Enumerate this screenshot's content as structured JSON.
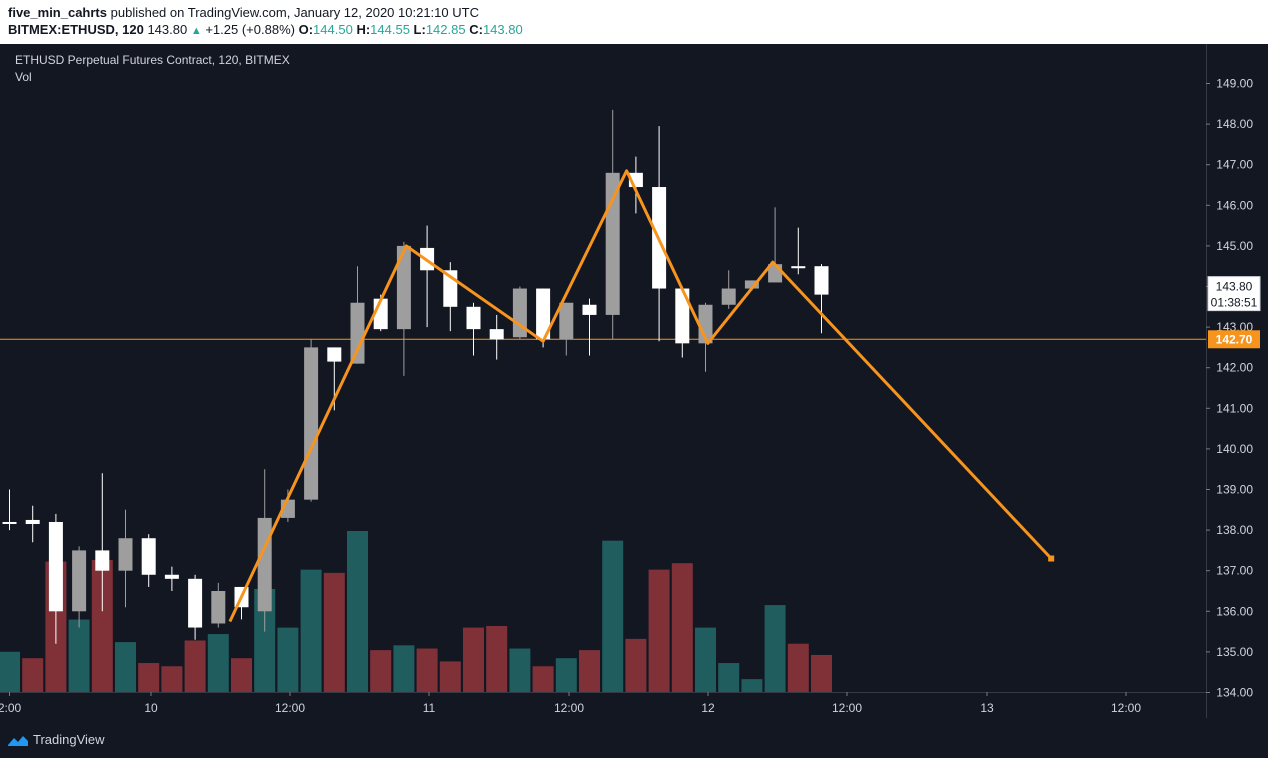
{
  "header": {
    "author": "five_min_cahrts",
    "published_text": "published on TradingView.com, January 12, 2020 10:21:10 UTC",
    "symbol": "BITMEX:ETHUSD, 120",
    "change_arrow": "▲",
    "change": "+1.25 (+0.88%)",
    "o_label": "O:",
    "o_value": "144.50",
    "h_label": "H:",
    "h_value": "144.55",
    "l_label": "L:",
    "l_value": "142.85",
    "c_label": "C:",
    "c_value": "143.80"
  },
  "legend": {
    "title": "ETHUSD Perpetual Futures Contract, 120, BITMEX",
    "vol_label": "Vol"
  },
  "footer": {
    "brand": "TradingView"
  },
  "colors": {
    "background": "#131722",
    "up_candle": "#ffffff",
    "down_candle": "#9e9e9e",
    "vol_up": "#1f5d5e",
    "vol_down": "#7f3137",
    "projection_line": "#f7941d",
    "price_line": "#f7941d"
  },
  "chart_data": {
    "type": "candlestick",
    "ylim": [
      134,
      149.5
    ],
    "y_ticks": [
      "149.00",
      "148.00",
      "147.00",
      "146.00",
      "145.00",
      "144.00",
      "143.00",
      "142.00",
      "141.00",
      "140.00",
      "139.00",
      "138.00",
      "137.00",
      "136.00",
      "135.00",
      "134.00"
    ],
    "x_ticks": [
      "2:00",
      "10",
      "12:00",
      "11",
      "12:00",
      "12",
      "12:00",
      "13",
      "12:00"
    ],
    "current_price": "143.80",
    "countdown": "01:38:51",
    "horizontal_line": {
      "value": 142.7,
      "label": "142.70"
    },
    "candles": [
      {
        "o": 138.2,
        "h": 139.0,
        "l": 138.0,
        "c": 138.2,
        "dir": "up"
      },
      {
        "o": 138.15,
        "h": 138.6,
        "l": 137.7,
        "c": 138.25,
        "dir": "up"
      },
      {
        "o": 136.0,
        "h": 138.4,
        "l": 135.2,
        "c": 138.2,
        "dir": "up"
      },
      {
        "o": 136.0,
        "h": 137.6,
        "l": 135.6,
        "c": 137.5,
        "dir": "down"
      },
      {
        "o": 137.0,
        "h": 139.4,
        "l": 136.0,
        "c": 137.5,
        "dir": "up"
      },
      {
        "o": 137.0,
        "h": 138.5,
        "l": 136.1,
        "c": 137.8,
        "dir": "down"
      },
      {
        "o": 136.9,
        "h": 137.9,
        "l": 136.6,
        "c": 137.8,
        "dir": "up"
      },
      {
        "o": 136.8,
        "h": 137.1,
        "l": 136.5,
        "c": 136.9,
        "dir": "up"
      },
      {
        "o": 135.6,
        "h": 136.9,
        "l": 135.3,
        "c": 136.8,
        "dir": "up"
      },
      {
        "o": 135.7,
        "h": 136.7,
        "l": 135.6,
        "c": 136.5,
        "dir": "down"
      },
      {
        "o": 136.1,
        "h": 136.6,
        "l": 135.8,
        "c": 136.6,
        "dir": "up"
      },
      {
        "o": 136.0,
        "h": 139.5,
        "l": 135.5,
        "c": 138.3,
        "dir": "down"
      },
      {
        "o": 138.3,
        "h": 139.0,
        "l": 138.2,
        "c": 138.75,
        "dir": "down"
      },
      {
        "o": 138.75,
        "h": 142.7,
        "l": 138.7,
        "c": 142.5,
        "dir": "down"
      },
      {
        "o": 142.15,
        "h": 142.5,
        "l": 140.95,
        "c": 142.5,
        "dir": "up"
      },
      {
        "o": 142.1,
        "h": 144.5,
        "l": 142.1,
        "c": 143.6,
        "dir": "down"
      },
      {
        "o": 143.7,
        "h": 143.8,
        "l": 142.9,
        "c": 142.95,
        "dir": "up"
      },
      {
        "o": 142.95,
        "h": 145.1,
        "l": 141.8,
        "c": 145.0,
        "dir": "down"
      },
      {
        "o": 144.95,
        "h": 145.5,
        "l": 143.0,
        "c": 144.4,
        "dir": "up"
      },
      {
        "o": 144.4,
        "h": 144.6,
        "l": 142.9,
        "c": 143.5,
        "dir": "up"
      },
      {
        "o": 143.5,
        "h": 143.6,
        "l": 142.3,
        "c": 142.95,
        "dir": "up"
      },
      {
        "o": 142.95,
        "h": 143.3,
        "l": 142.2,
        "c": 142.7,
        "dir": "up"
      },
      {
        "o": 142.75,
        "h": 144.0,
        "l": 142.7,
        "c": 143.95,
        "dir": "down"
      },
      {
        "o": 143.95,
        "h": 143.95,
        "l": 142.5,
        "c": 142.7,
        "dir": "up"
      },
      {
        "o": 142.7,
        "h": 143.6,
        "l": 142.3,
        "c": 143.6,
        "dir": "down"
      },
      {
        "o": 143.55,
        "h": 143.7,
        "l": 142.3,
        "c": 143.3,
        "dir": "up"
      },
      {
        "o": 143.3,
        "h": 148.35,
        "l": 142.7,
        "c": 146.8,
        "dir": "down"
      },
      {
        "o": 146.8,
        "h": 147.2,
        "l": 145.8,
        "c": 146.45,
        "dir": "up"
      },
      {
        "o": 146.45,
        "h": 147.95,
        "l": 142.65,
        "c": 143.95,
        "dir": "up"
      },
      {
        "o": 143.95,
        "h": 144.0,
        "l": 142.25,
        "c": 142.6,
        "dir": "up"
      },
      {
        "o": 142.6,
        "h": 143.6,
        "l": 141.9,
        "c": 143.55,
        "dir": "down"
      },
      {
        "o": 143.55,
        "h": 144.4,
        "l": 143.45,
        "c": 143.95,
        "dir": "down"
      },
      {
        "o": 143.95,
        "h": 144.15,
        "l": 143.9,
        "c": 144.15,
        "dir": "down"
      },
      {
        "o": 144.1,
        "h": 145.95,
        "l": 144.1,
        "c": 144.55,
        "dir": "down"
      },
      {
        "o": 144.5,
        "h": 145.45,
        "l": 144.3,
        "c": 144.45,
        "dir": "up"
      },
      {
        "o": 144.5,
        "h": 144.55,
        "l": 142.85,
        "c": 143.8,
        "dir": "up"
      }
    ],
    "volume": [
      {
        "v": 0.25,
        "dir": "up"
      },
      {
        "v": 0.21,
        "dir": "down"
      },
      {
        "v": 0.81,
        "dir": "down"
      },
      {
        "v": 0.45,
        "dir": "up"
      },
      {
        "v": 0.82,
        "dir": "down"
      },
      {
        "v": 0.31,
        "dir": "up"
      },
      {
        "v": 0.18,
        "dir": "down"
      },
      {
        "v": 0.16,
        "dir": "down"
      },
      {
        "v": 0.32,
        "dir": "down"
      },
      {
        "v": 0.36,
        "dir": "up"
      },
      {
        "v": 0.21,
        "dir": "down"
      },
      {
        "v": 0.64,
        "dir": "up"
      },
      {
        "v": 0.4,
        "dir": "up"
      },
      {
        "v": 0.76,
        "dir": "up"
      },
      {
        "v": 0.74,
        "dir": "down"
      },
      {
        "v": 1.0,
        "dir": "up"
      },
      {
        "v": 0.26,
        "dir": "down"
      },
      {
        "v": 0.29,
        "dir": "up"
      },
      {
        "v": 0.27,
        "dir": "down"
      },
      {
        "v": 0.19,
        "dir": "down"
      },
      {
        "v": 0.4,
        "dir": "down"
      },
      {
        "v": 0.41,
        "dir": "down"
      },
      {
        "v": 0.27,
        "dir": "up"
      },
      {
        "v": 0.16,
        "dir": "down"
      },
      {
        "v": 0.21,
        "dir": "up"
      },
      {
        "v": 0.26,
        "dir": "down"
      },
      {
        "v": 0.94,
        "dir": "up"
      },
      {
        "v": 0.33,
        "dir": "down"
      },
      {
        "v": 0.76,
        "dir": "down"
      },
      {
        "v": 0.8,
        "dir": "down"
      },
      {
        "v": 0.4,
        "dir": "up"
      },
      {
        "v": 0.18,
        "dir": "up"
      },
      {
        "v": 0.08,
        "dir": "up"
      },
      {
        "v": 0.54,
        "dir": "up"
      },
      {
        "v": 0.3,
        "dir": "down"
      },
      {
        "v": 0.23,
        "dir": "down"
      }
    ],
    "projection_path": [
      {
        "x": 9.5,
        "y": 135.75
      },
      {
        "x": 17.1,
        "y": 145.0
      },
      {
        "x": 23.0,
        "y": 142.65
      },
      {
        "x": 26.6,
        "y": 146.85
      },
      {
        "x": 30.1,
        "y": 142.6
      },
      {
        "x": 32.9,
        "y": 144.6
      },
      {
        "x": 44.9,
        "y": 137.3
      }
    ]
  }
}
